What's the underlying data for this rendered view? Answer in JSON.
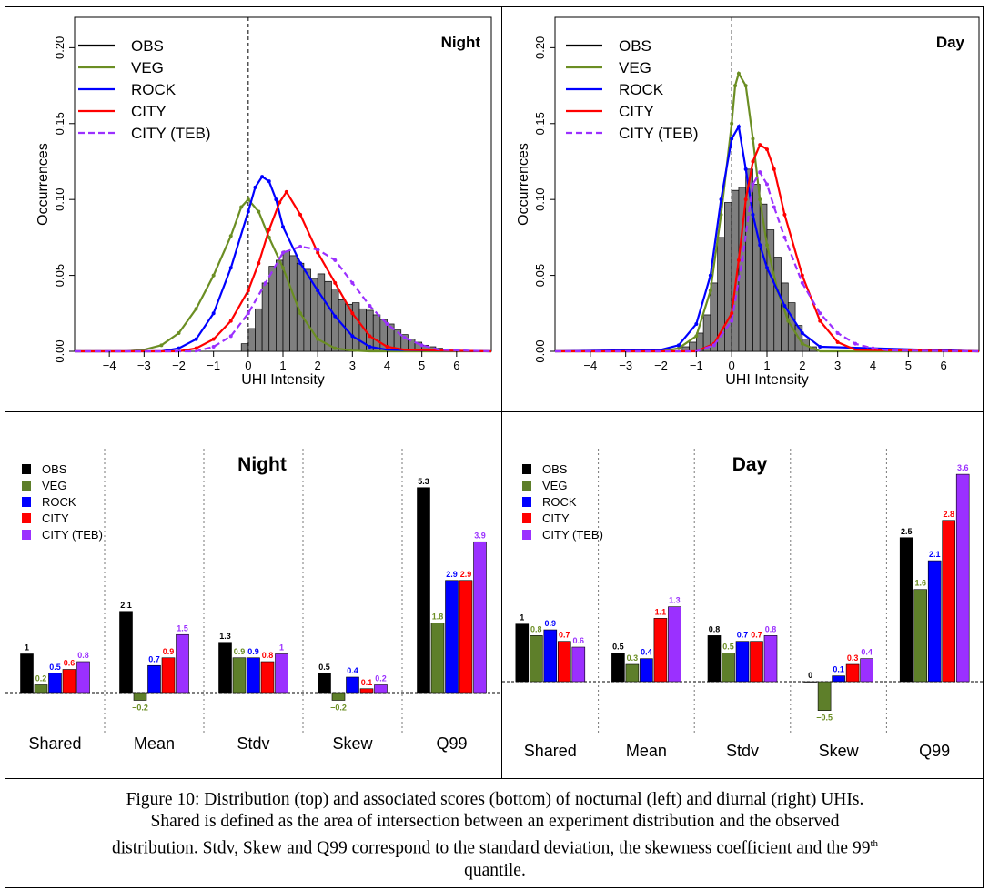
{
  "figure": {
    "caption_parts": [
      "Figure 10: Distribution (top) and associated scores (bottom) of nocturnal (left) and diurnal (right) UHIs.",
      "Shared is defined as the area of intersection between an experiment distribution and the observed",
      "distribution. Stdv, Skew and Q99 correspond to the standard deviation, the skewness coefficient and the 99",
      "th",
      "quantile."
    ]
  },
  "colors": {
    "OBS": "#000000",
    "VEG": "#6b8e23",
    "ROCK": "#0000ff",
    "CITY": "#ff0000",
    "CITY (TEB)": "#9b30ff",
    "hist_fill": "#7f7f7f",
    "veg_bar": "#5e7f2a"
  },
  "chart_data": [
    {
      "type": "line",
      "panel": "top-left",
      "title": "Night",
      "xlabel": "UHI Intensity",
      "ylabel": "Occurrences",
      "xlim": [
        -5,
        7
      ],
      "ylim": [
        0,
        0.22
      ],
      "xticks": [
        "-4",
        "-3",
        "-2",
        "-1",
        "0",
        "1",
        "2",
        "3",
        "4",
        "5",
        "6"
      ],
      "yticks": [
        "0.00",
        "0.05",
        "0.10",
        "0.15",
        "0.20"
      ],
      "legend": [
        "OBS",
        "VEG",
        "ROCK",
        "CITY",
        "CITY (TEB)"
      ],
      "legend_position": "top-left",
      "vline": 0,
      "histogram": {
        "bins": [
          -0.2,
          0.0,
          0.2,
          0.4,
          0.6,
          0.8,
          1.0,
          1.2,
          1.4,
          1.6,
          1.8,
          2.0,
          2.2,
          2.4,
          2.6,
          2.8,
          3.0,
          3.2,
          3.4,
          3.6,
          3.8,
          4.0,
          4.2,
          4.4,
          4.6,
          4.8,
          5.0,
          5.2,
          5.4,
          5.6
        ],
        "values": [
          0.005,
          0.015,
          0.028,
          0.045,
          0.056,
          0.06,
          0.066,
          0.063,
          0.058,
          0.054,
          0.048,
          0.051,
          0.046,
          0.041,
          0.034,
          0.031,
          0.032,
          0.028,
          0.027,
          0.024,
          0.021,
          0.018,
          0.014,
          0.011,
          0.008,
          0.006,
          0.004,
          0.003,
          0.002,
          0.001
        ]
      },
      "series": [
        {
          "name": "VEG",
          "x": [
            -5,
            -3.5,
            -3,
            -2.5,
            -2,
            -1.5,
            -1,
            -0.5,
            -0.2,
            0,
            0.3,
            0.6,
            1,
            1.5,
            2,
            2.5,
            3,
            3.5,
            7
          ],
          "y": [
            0,
            0,
            0.001,
            0.004,
            0.012,
            0.028,
            0.05,
            0.076,
            0.095,
            0.1,
            0.092,
            0.075,
            0.055,
            0.025,
            0.008,
            0.002,
            0.0005,
            0,
            0
          ]
        },
        {
          "name": "ROCK",
          "x": [
            -5,
            -2.5,
            -2,
            -1.5,
            -1,
            -0.5,
            0,
            0.2,
            0.4,
            0.6,
            0.8,
            1,
            1.5,
            2,
            2.5,
            3,
            3.5,
            4,
            7
          ],
          "y": [
            0,
            0,
            0.002,
            0.008,
            0.025,
            0.055,
            0.092,
            0.108,
            0.115,
            0.112,
            0.1,
            0.082,
            0.058,
            0.04,
            0.023,
            0.01,
            0.003,
            0.001,
            0
          ]
        },
        {
          "name": "CITY",
          "x": [
            -5,
            -2,
            -1.5,
            -1,
            -0.5,
            0,
            0.3,
            0.6,
            0.9,
            1.1,
            1.5,
            2,
            2.5,
            3,
            3.5,
            4,
            4.5,
            7
          ],
          "y": [
            0,
            0,
            0.002,
            0.008,
            0.02,
            0.04,
            0.058,
            0.08,
            0.098,
            0.105,
            0.09,
            0.065,
            0.045,
            0.025,
            0.01,
            0.003,
            0.001,
            0
          ]
        },
        {
          "name": "CITY (TEB)",
          "x": [
            -5,
            -1.5,
            -1,
            -0.5,
            0,
            0.5,
            1,
            1.5,
            2,
            2.5,
            3,
            3.5,
            4,
            4.5,
            5,
            5.5,
            7
          ],
          "y": [
            0,
            0,
            0.003,
            0.01,
            0.025,
            0.045,
            0.065,
            0.069,
            0.067,
            0.06,
            0.045,
            0.03,
            0.018,
            0.009,
            0.004,
            0.001,
            0
          ]
        }
      ]
    },
    {
      "type": "line",
      "panel": "top-right",
      "title": "Day",
      "xlabel": "UHI Intensity",
      "ylabel": "Occurrences",
      "xlim": [
        -5,
        7
      ],
      "ylim": [
        0,
        0.22
      ],
      "xticks": [
        "-4",
        "-3",
        "-2",
        "-1",
        "0",
        "1",
        "2",
        "3",
        "4",
        "5",
        "6"
      ],
      "yticks": [
        "0.00",
        "0.05",
        "0.10",
        "0.15",
        "0.20"
      ],
      "legend": [
        "OBS",
        "VEG",
        "ROCK",
        "CITY",
        "CITY (TEB)"
      ],
      "legend_position": "top-left",
      "vline": 0,
      "histogram": {
        "bins": [
          -1.4,
          -1.2,
          -1.0,
          -0.8,
          -0.6,
          -0.4,
          -0.2,
          0.0,
          0.2,
          0.4,
          0.6,
          0.8,
          1.0,
          1.2,
          1.4,
          1.6,
          1.8,
          2.0,
          2.2
        ],
        "values": [
          0.003,
          0.006,
          0.012,
          0.024,
          0.045,
          0.075,
          0.098,
          0.106,
          0.108,
          0.12,
          0.11,
          0.097,
          0.08,
          0.062,
          0.045,
          0.032,
          0.017,
          0.008,
          0.003
        ]
      },
      "series": [
        {
          "name": "VEG",
          "x": [
            -5,
            -2,
            -1.5,
            -1,
            -0.6,
            -0.3,
            0,
            0.1,
            0.2,
            0.4,
            0.6,
            0.8,
            1,
            1.3,
            1.6,
            2,
            2.5,
            7
          ],
          "y": [
            0,
            0,
            0.002,
            0.01,
            0.04,
            0.09,
            0.15,
            0.175,
            0.183,
            0.175,
            0.14,
            0.1,
            0.07,
            0.04,
            0.02,
            0.005,
            0,
            0
          ]
        },
        {
          "name": "ROCK",
          "x": [
            -5,
            -2,
            -1.5,
            -1,
            -0.6,
            -0.3,
            0,
            0.2,
            0.4,
            0.6,
            0.8,
            1,
            1.5,
            2,
            2.5,
            7
          ],
          "y": [
            0,
            0.001,
            0.004,
            0.018,
            0.05,
            0.1,
            0.14,
            0.148,
            0.12,
            0.09,
            0.07,
            0.055,
            0.03,
            0.012,
            0.003,
            0
          ]
        },
        {
          "name": "CITY",
          "x": [
            -5,
            -1,
            -0.5,
            0,
            0.2,
            0.4,
            0.6,
            0.8,
            1,
            1.2,
            1.5,
            2,
            2.5,
            3,
            3.5,
            7
          ],
          "y": [
            0,
            0,
            0.005,
            0.025,
            0.06,
            0.1,
            0.125,
            0.136,
            0.133,
            0.12,
            0.09,
            0.05,
            0.02,
            0.006,
            0.001,
            0
          ]
        },
        {
          "name": "CITY (TEB)",
          "x": [
            -5,
            -1,
            -0.5,
            0,
            0.3,
            0.6,
            0.8,
            1,
            1.2,
            1.5,
            2,
            2.5,
            3,
            3.5,
            4,
            4.5,
            7
          ],
          "y": [
            0,
            0,
            0.004,
            0.02,
            0.06,
            0.11,
            0.118,
            0.11,
            0.095,
            0.075,
            0.045,
            0.025,
            0.012,
            0.005,
            0.002,
            0.0005,
            0
          ]
        }
      ]
    },
    {
      "type": "bar",
      "panel": "bottom-left",
      "title": "Night",
      "categories": [
        "Shared",
        "Mean",
        "Stdv",
        "Skew",
        "Q99"
      ],
      "legend": [
        "OBS",
        "VEG",
        "ROCK",
        "CITY",
        "CITY (TEB)"
      ],
      "legend_position": "top-left",
      "series": [
        {
          "name": "OBS",
          "values": [
            1,
            2.1,
            1.3,
            0.5,
            5.3
          ],
          "labels": [
            "1",
            "2.1",
            "1.3",
            "0.5",
            "5.3"
          ]
        },
        {
          "name": "VEG",
          "values": [
            0.2,
            -0.2,
            0.9,
            -0.2,
            1.8
          ],
          "labels": [
            "0.2",
            "−0.2",
            "0.9",
            "−0.2",
            "1.8"
          ]
        },
        {
          "name": "ROCK",
          "values": [
            0.5,
            0.7,
            0.9,
            0.4,
            2.9
          ],
          "labels": [
            "0.5",
            "0.7",
            "0.9",
            "0.4",
            "2.9"
          ]
        },
        {
          "name": "CITY",
          "values": [
            0.6,
            0.9,
            0.8,
            0.1,
            2.9
          ],
          "labels": [
            "0.6",
            "0.9",
            "0.8",
            "0.1",
            "2.9"
          ]
        },
        {
          "name": "CITY (TEB)",
          "values": [
            0.8,
            1.5,
            1,
            0.2,
            3.9
          ],
          "labels": [
            "0.8",
            "1.5",
            "1",
            "0.2",
            "3.9"
          ]
        }
      ]
    },
    {
      "type": "bar",
      "panel": "bottom-right",
      "title": "Day",
      "categories": [
        "Shared",
        "Mean",
        "Stdv",
        "Skew",
        "Q99"
      ],
      "legend": [
        "OBS",
        "VEG",
        "ROCK",
        "CITY",
        "CITY (TEB)"
      ],
      "legend_position": "top-left",
      "series": [
        {
          "name": "OBS",
          "values": [
            1,
            0.5,
            0.8,
            0,
            2.5
          ],
          "labels": [
            "1",
            "0.5",
            "0.8",
            "0",
            "2.5"
          ]
        },
        {
          "name": "VEG",
          "values": [
            0.8,
            0.3,
            0.5,
            -0.5,
            1.6
          ],
          "labels": [
            "0.8",
            "0.3",
            "0.5",
            "−0.5",
            "1.6"
          ]
        },
        {
          "name": "ROCK",
          "values": [
            0.9,
            0.4,
            0.7,
            0.1,
            2.1
          ],
          "labels": [
            "0.9",
            "0.4",
            "0.7",
            "0.1",
            "2.1"
          ]
        },
        {
          "name": "CITY",
          "values": [
            0.7,
            1.1,
            0.7,
            0.3,
            2.8
          ],
          "labels": [
            "0.7",
            "1.1",
            "0.7",
            "0.3",
            "2.8"
          ]
        },
        {
          "name": "CITY (TEB)",
          "values": [
            0.6,
            1.3,
            0.8,
            0.4,
            3.6
          ],
          "labels": [
            "0.6",
            "1.3",
            "0.8",
            "0.4",
            "3.6"
          ]
        }
      ]
    }
  ]
}
